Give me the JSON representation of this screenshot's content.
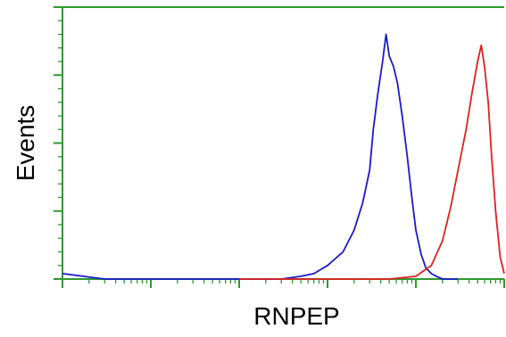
{
  "chart_data": {
    "type": "line",
    "xlabel": "RNPEP",
    "ylabel": "Events",
    "x_scale": "log",
    "xlim": [
      1,
      100000
    ],
    "ylim": [
      0,
      100
    ],
    "grid": false,
    "frame_color": "#2e9a2e",
    "series": [
      {
        "color": "#1a1acc",
        "x": [
          1,
          3,
          40,
          150,
          300,
          500,
          700,
          1000,
          1500,
          2000,
          2500,
          3000,
          3300,
          3700,
          4200,
          4600,
          5000,
          5600,
          6200,
          7000,
          8000,
          9000,
          10000,
          11500,
          13000,
          15000,
          17000,
          20000,
          25000,
          30000
        ],
        "y": [
          2,
          0,
          0,
          0,
          0,
          1,
          2,
          5,
          10,
          18,
          28,
          40,
          55,
          68,
          80,
          90,
          82,
          78,
          72,
          60,
          45,
          30,
          18,
          9,
          4,
          2,
          1,
          0,
          0,
          0
        ]
      },
      {
        "color": "#e02020",
        "x": [
          100,
          1000,
          5000,
          10000,
          15000,
          20000,
          25000,
          30000,
          37000,
          43000,
          50000,
          55000,
          60000,
          66000,
          72000,
          80000,
          90000,
          100000
        ],
        "y": [
          0,
          0,
          0,
          1,
          5,
          14,
          27,
          40,
          55,
          68,
          80,
          86,
          78,
          65,
          45,
          25,
          8,
          2
        ]
      }
    ]
  }
}
